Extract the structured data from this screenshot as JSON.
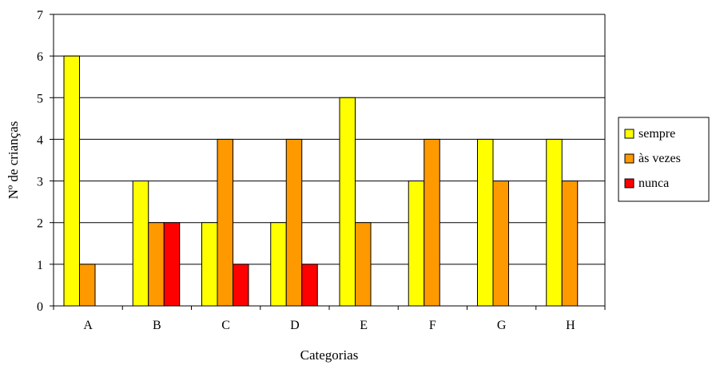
{
  "chart_data": {
    "type": "bar",
    "title": "",
    "xlabel": "Categorias",
    "ylabel": "Nº de crianças",
    "ylim": [
      0,
      7
    ],
    "yticks": [
      0,
      1,
      2,
      3,
      4,
      5,
      6,
      7
    ],
    "grid": true,
    "legend_position": "right",
    "categories": [
      "A",
      "B",
      "C",
      "D",
      "E",
      "F",
      "G",
      "H"
    ],
    "series": [
      {
        "name": "sempre",
        "color": "#ffff00",
        "values": [
          6,
          3,
          2,
          2,
          5,
          3,
          4,
          4
        ]
      },
      {
        "name": "às vezes",
        "color": "#ff9900",
        "values": [
          1,
          2,
          4,
          4,
          2,
          4,
          3,
          3
        ]
      },
      {
        "name": "nunca",
        "color": "#ff0000",
        "values": [
          0,
          2,
          1,
          1,
          0,
          0,
          0,
          0
        ]
      }
    ]
  }
}
